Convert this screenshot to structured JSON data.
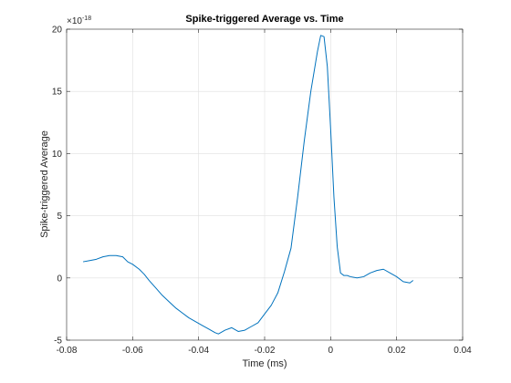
{
  "chart_data": {
    "type": "line",
    "title": "Spike-triggered Average vs. Time",
    "xlabel": "Time (ms)",
    "ylabel": "Spike-triggered Average",
    "xlim": [
      -0.08,
      0.04
    ],
    "ylim": [
      -5,
      20
    ],
    "x_ticks": [
      -0.08,
      -0.06,
      -0.04,
      -0.02,
      0,
      0.02,
      0.04
    ],
    "x_tick_labels": [
      "-0.08",
      "-0.06",
      "-0.04",
      "-0.02",
      "0",
      "0.02",
      "0.04"
    ],
    "y_ticks": [
      -5,
      0,
      5,
      10,
      15,
      20
    ],
    "y_tick_labels": [
      "-5",
      "0",
      "5",
      "10",
      "15",
      "20"
    ],
    "y_exponent": {
      "base": "×10",
      "power": "-18"
    },
    "grid": true,
    "line_color": "#0072BD",
    "series": [
      {
        "x": [
          -0.075,
          -0.073,
          -0.071,
          -0.069,
          -0.067,
          -0.065,
          -0.063,
          -0.0615,
          -0.06,
          -0.058,
          -0.0565,
          -0.055,
          -0.053,
          -0.051,
          -0.049,
          -0.047,
          -0.045,
          -0.043,
          -0.041,
          -0.039,
          -0.037,
          -0.035,
          -0.034,
          -0.032,
          -0.03,
          -0.028,
          -0.026,
          -0.024,
          -0.022,
          -0.02,
          -0.018,
          -0.016,
          -0.014,
          -0.012,
          -0.01,
          -0.008,
          -0.006,
          -0.004,
          -0.003,
          -0.002,
          -0.001,
          0.0,
          0.001,
          0.002,
          0.003,
          0.004,
          0.005,
          0.006,
          0.008,
          0.01,
          0.012,
          0.014,
          0.016,
          0.018,
          0.02,
          0.022,
          0.024,
          0.025
        ],
        "y": [
          1.3,
          1.4,
          1.5,
          1.7,
          1.8,
          1.8,
          1.7,
          1.3,
          1.1,
          0.7,
          0.3,
          -0.2,
          -0.8,
          -1.4,
          -1.9,
          -2.4,
          -2.8,
          -3.2,
          -3.5,
          -3.8,
          -4.1,
          -4.4,
          -4.5,
          -4.2,
          -4.0,
          -4.3,
          -4.2,
          -3.9,
          -3.6,
          -2.9,
          -2.2,
          -1.2,
          0.5,
          2.4,
          6.5,
          11.0,
          15.0,
          18.2,
          19.5,
          19.4,
          17.0,
          12.0,
          6.5,
          2.5,
          0.4,
          0.2,
          0.2,
          0.1,
          0.0,
          0.1,
          0.4,
          0.6,
          0.7,
          0.4,
          0.1,
          -0.3,
          -0.4,
          -0.2
        ]
      }
    ]
  }
}
